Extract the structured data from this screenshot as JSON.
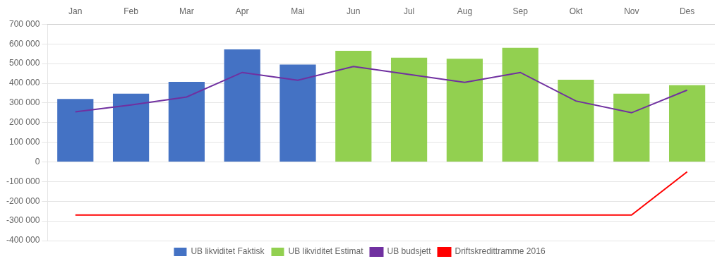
{
  "chart_data": {
    "type": "bar",
    "categories": [
      "Jan",
      "Feb",
      "Mar",
      "Apr",
      "Mai",
      "Jun",
      "Jul",
      "Aug",
      "Sep",
      "Okt",
      "Nov",
      "Des"
    ],
    "series": [
      {
        "name": "UB likviditet Faktisk",
        "type": "bar",
        "color": "#4472C4",
        "values": [
          320000,
          347000,
          407000,
          572000,
          495000,
          null,
          null,
          null,
          null,
          null,
          null,
          null
        ]
      },
      {
        "name": "UB likviditet Estimat",
        "type": "bar",
        "color": "#92D050",
        "values": [
          null,
          null,
          null,
          null,
          null,
          565000,
          530000,
          525000,
          580000,
          418000,
          347000,
          390000
        ]
      },
      {
        "name": "UB budsjett",
        "type": "line",
        "color": "#7030A0",
        "values": [
          255000,
          290000,
          330000,
          455000,
          415000,
          485000,
          445000,
          405000,
          455000,
          310000,
          250000,
          365000
        ]
      },
      {
        "name": "Driftskredittramme 2016",
        "type": "line",
        "color": "#FF0000",
        "values": [
          -270000,
          -270000,
          -270000,
          -270000,
          -270000,
          -270000,
          -270000,
          -270000,
          -270000,
          -270000,
          -270000,
          -50000
        ]
      }
    ],
    "ylim": [
      -400000,
      700000
    ],
    "yticks": [
      {
        "value": -400000,
        "label": "-400 000"
      },
      {
        "value": -300000,
        "label": "-300 000"
      },
      {
        "value": -200000,
        "label": "-200 000"
      },
      {
        "value": -100000,
        "label": "-100 000"
      },
      0,
      {
        "value": 100000,
        "label": "100 000"
      },
      {
        "value": 200000,
        "label": "200 000"
      },
      {
        "value": 300000,
        "label": "300 000"
      },
      {
        "value": 400000,
        "label": "400 000"
      },
      {
        "value": 500000,
        "label": "500 000"
      },
      {
        "value": 600000,
        "label": "600 000"
      },
      {
        "value": 700000,
        "label": "700 000"
      }
    ],
    "grid": true,
    "legend": "bottom"
  }
}
